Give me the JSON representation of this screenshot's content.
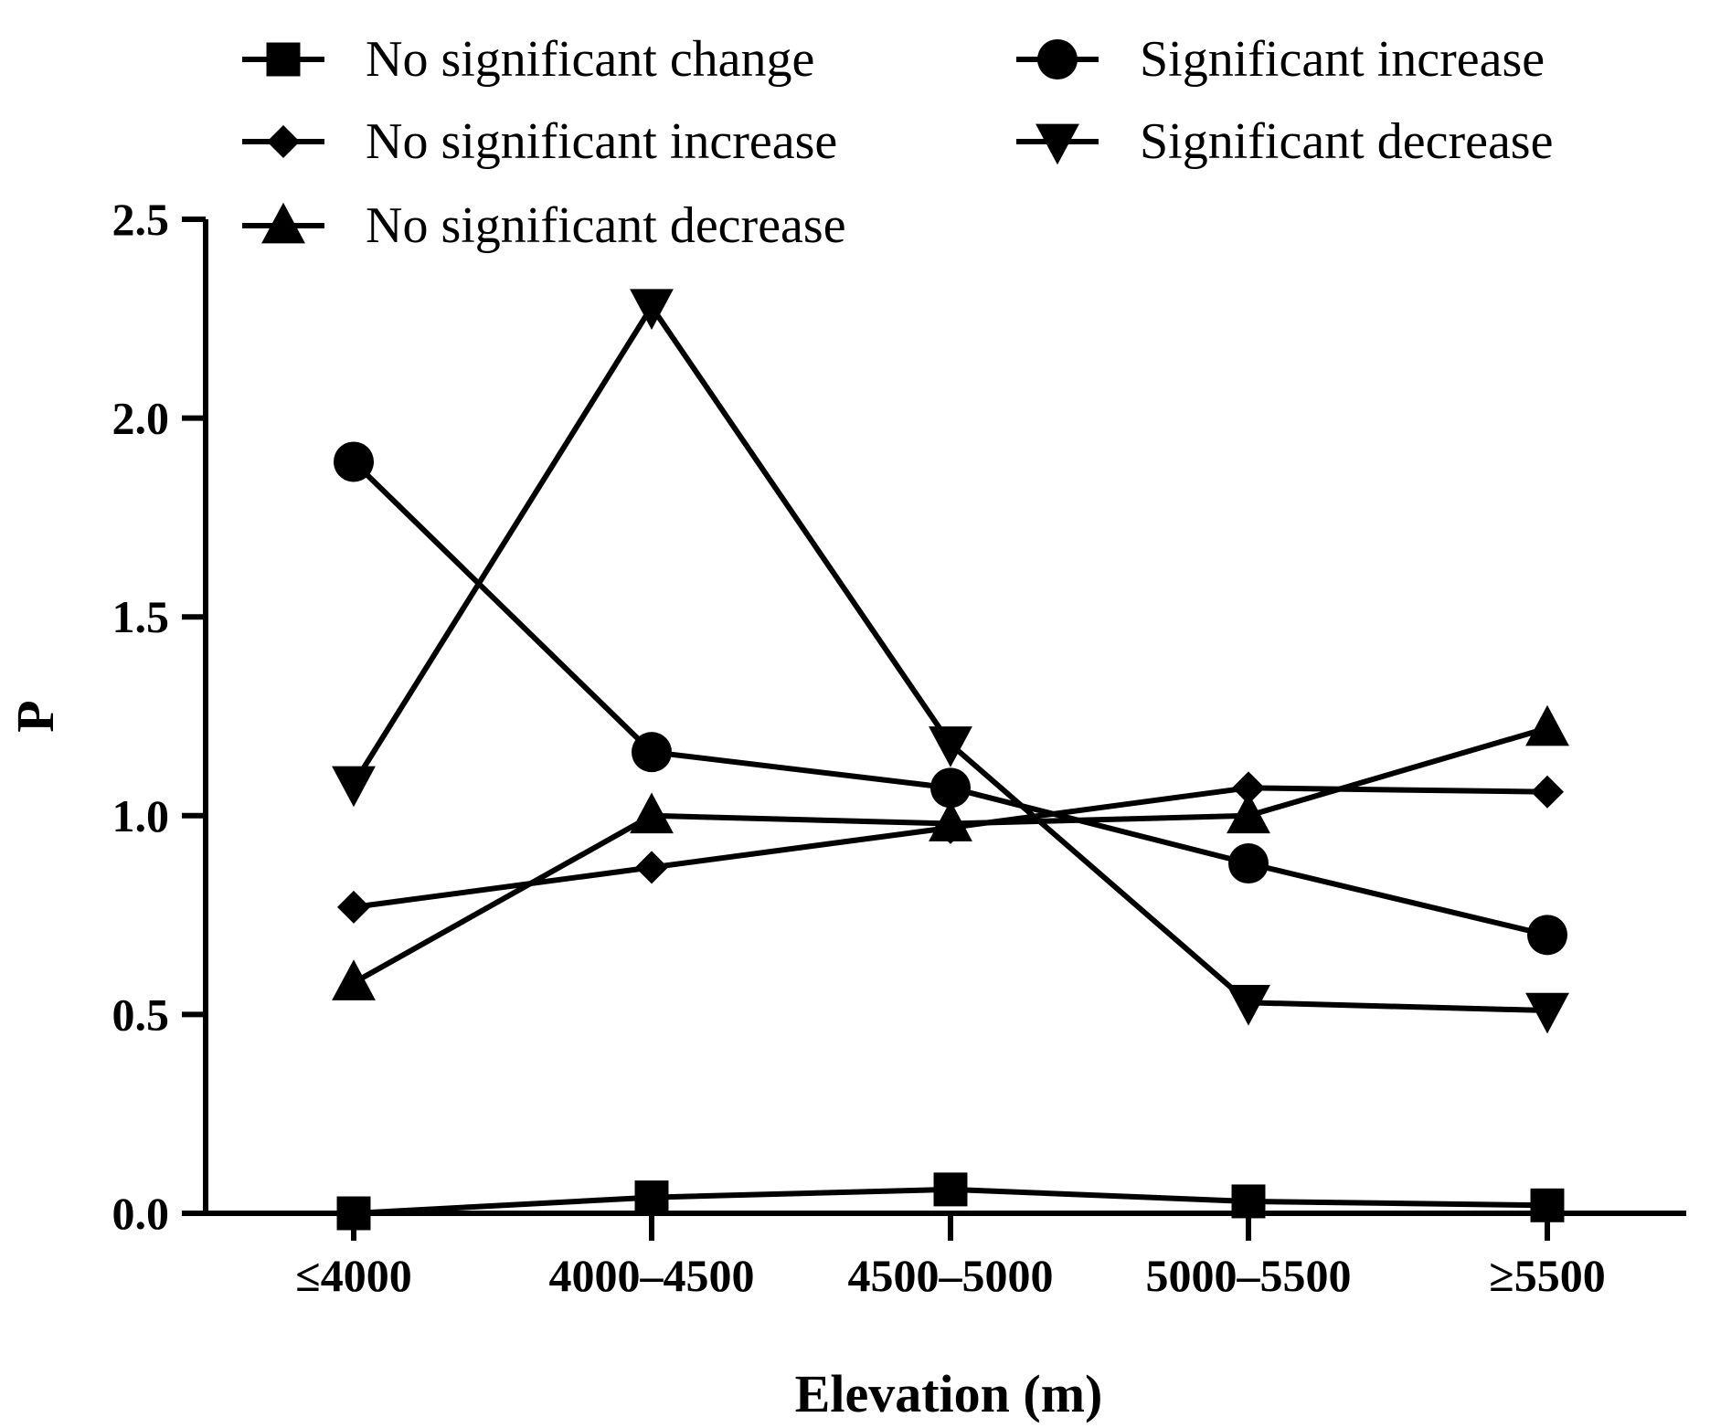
{
  "chart_data": {
    "type": "line",
    "title": "",
    "xlabel": "Elevation (m)",
    "ylabel": "P",
    "categories": [
      "≤4000",
      "4000–4500",
      "4500–5000",
      "5000–5500",
      "≥5500"
    ],
    "ylim": [
      0,
      2.5
    ],
    "yticks": [
      0.0,
      0.5,
      1.0,
      1.5,
      2.0,
      2.5
    ],
    "ytick_labels": [
      "0.0",
      "0.5",
      "1.0",
      "1.5",
      "2.0",
      "2.5"
    ],
    "grid": false,
    "legend_position": "top",
    "series": [
      {
        "name": "No significant change",
        "marker": "square",
        "values": [
          0.0,
          0.04,
          0.06,
          0.03,
          0.02
        ]
      },
      {
        "name": "Significant increase",
        "marker": "circle",
        "values": [
          1.89,
          1.16,
          1.07,
          0.88,
          0.7
        ]
      },
      {
        "name": "No significant increase",
        "marker": "diamond",
        "values": [
          0.77,
          0.87,
          0.97,
          1.07,
          1.06
        ]
      },
      {
        "name": "Significant decrease",
        "marker": "triangle-down",
        "values": [
          1.08,
          2.28,
          1.18,
          0.53,
          0.51
        ]
      },
      {
        "name": "No significant decrease",
        "marker": "triangle-up",
        "values": [
          0.58,
          1.0,
          0.98,
          1.0,
          1.22
        ]
      }
    ],
    "line_color": "#000000"
  }
}
